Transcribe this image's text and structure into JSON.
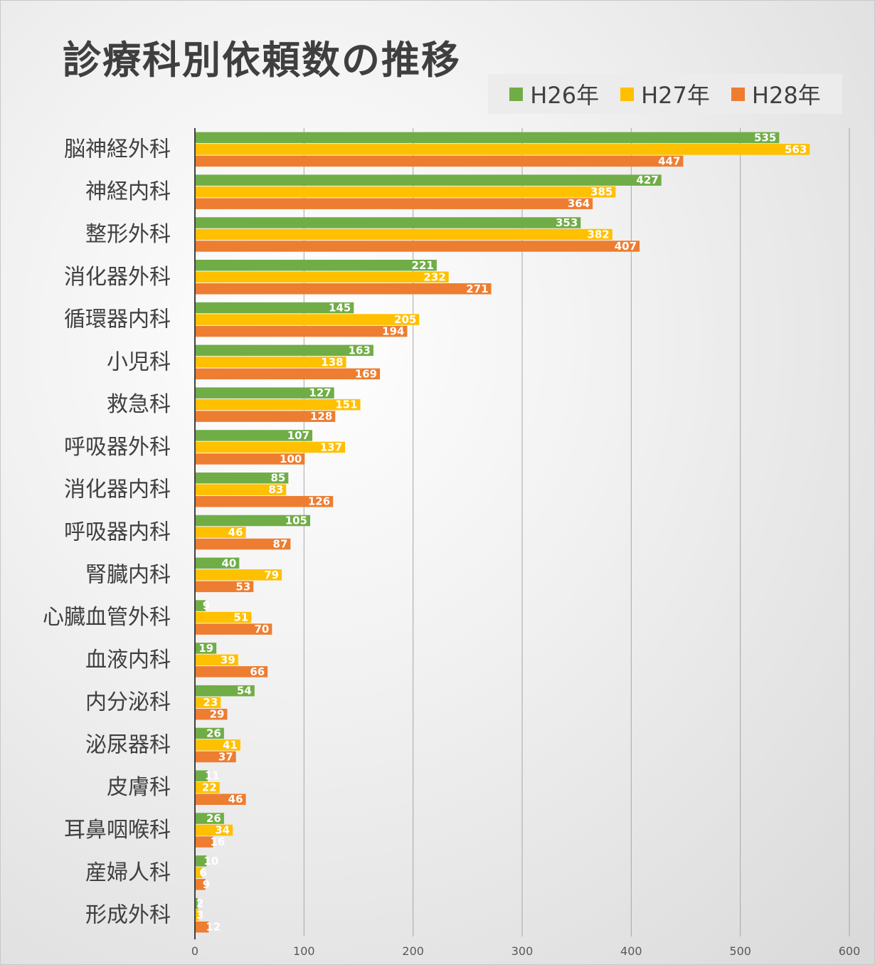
{
  "chart_data": {
    "type": "bar",
    "orientation": "horizontal",
    "title": "診療科別依頼数の推移",
    "categories": [
      "脳神経外科",
      "神経内科",
      "整形外科",
      "消化器外科",
      "循環器内科",
      "小児科",
      "救急科",
      "呼吸器外科",
      "消化器内科",
      "呼吸器内科",
      "腎臓内科",
      "心臓血管外科",
      "血液内科",
      "内分泌科",
      "泌尿器科",
      "皮膚科",
      "耳鼻咽喉科",
      "産婦人科",
      "形成外科"
    ],
    "series": [
      {
        "name": "H26年",
        "color": "#70ad47",
        "values": [
          535,
          427,
          353,
          221,
          145,
          163,
          127,
          107,
          85,
          105,
          40,
          9,
          19,
          54,
          26,
          11,
          26,
          10,
          2
        ]
      },
      {
        "name": "H27年",
        "color": "#ffc000",
        "values": [
          563,
          385,
          382,
          232,
          205,
          138,
          151,
          137,
          83,
          46,
          79,
          51,
          39,
          23,
          41,
          22,
          34,
          6,
          3
        ]
      },
      {
        "name": "H28年",
        "color": "#ed7d31",
        "values": [
          447,
          364,
          407,
          271,
          194,
          169,
          128,
          100,
          126,
          87,
          53,
          70,
          66,
          29,
          37,
          46,
          16,
          9,
          12
        ]
      }
    ],
    "xlim": [
      0,
      600
    ],
    "ticks": [
      0,
      100,
      200,
      300,
      400,
      500,
      600
    ],
    "grid": true,
    "legend_position": "top-right",
    "data_labels": true
  }
}
